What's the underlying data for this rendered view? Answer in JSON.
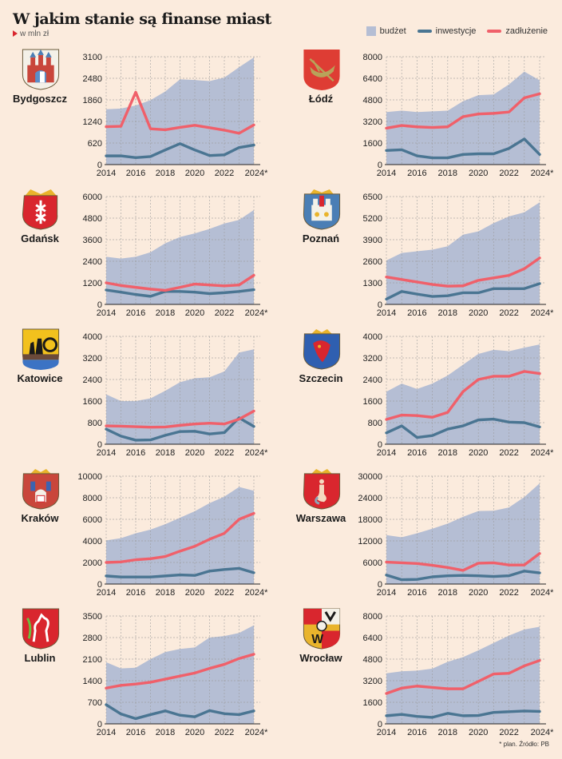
{
  "header": {
    "title": "W jakim stanie są finanse miast",
    "subtitle": "w mln zł"
  },
  "legend": {
    "budget": "budżet",
    "investments": "inwestycje",
    "debt": "zadłużenie"
  },
  "colors": {
    "background": "#fbebdd",
    "budget": "#b5bed4",
    "investments": "#4a7592",
    "debt": "#f0606a",
    "accent": "#d9262e"
  },
  "footnote": "* plan. Źródło: PB",
  "chart_data": [
    {
      "type": "area+line",
      "city": "Bydgoszcz",
      "x": [
        "2014",
        "2015",
        "2016",
        "2017",
        "2018",
        "2019",
        "2020",
        "2021",
        "2022",
        "2023",
        "2024*"
      ],
      "xticks": [
        "2014",
        "2016",
        "2018",
        "2020",
        "2022",
        "2024*"
      ],
      "yticks": [
        "0",
        "620",
        "1240",
        "1860",
        "2480",
        "3100"
      ],
      "ylim": [
        0,
        3100
      ],
      "series": [
        {
          "name": "budżet",
          "values": [
            1590,
            1610,
            1700,
            1850,
            2100,
            2450,
            2430,
            2400,
            2500,
            2800,
            3080
          ]
        },
        {
          "name": "inwestycje",
          "values": [
            250,
            250,
            200,
            230,
            420,
            600,
            420,
            260,
            280,
            490,
            560
          ]
        },
        {
          "name": "zadłużenie",
          "values": [
            1090,
            1100,
            2080,
            1030,
            1000,
            1070,
            1130,
            1060,
            990,
            900,
            1140
          ]
        }
      ]
    },
    {
      "type": "area+line",
      "city": "Łódź",
      "x": [
        "2014",
        "2015",
        "2016",
        "2017",
        "2018",
        "2019",
        "2020",
        "2021",
        "2022",
        "2023",
        "2024*"
      ],
      "xticks": [
        "2014",
        "2016",
        "2018",
        "2020",
        "2022",
        "2024*"
      ],
      "yticks": [
        "0",
        "1600",
        "3200",
        "4800",
        "6400",
        "8000"
      ],
      "ylim": [
        0,
        8000
      ],
      "series": [
        {
          "name": "budżet",
          "values": [
            3900,
            4000,
            3900,
            3950,
            4000,
            4700,
            5150,
            5200,
            5950,
            6900,
            6250
          ]
        },
        {
          "name": "inwestycje",
          "values": [
            1050,
            1100,
            650,
            500,
            500,
            750,
            800,
            800,
            1200,
            1900,
            750
          ]
        },
        {
          "name": "zadłużenie",
          "values": [
            2700,
            2900,
            2800,
            2750,
            2800,
            3550,
            3750,
            3800,
            3900,
            4950,
            5250
          ]
        }
      ]
    },
    {
      "type": "area+line",
      "city": "Gdańsk",
      "x": [
        "2014",
        "2015",
        "2016",
        "2017",
        "2018",
        "2019",
        "2020",
        "2021",
        "2022",
        "2023",
        "2024*"
      ],
      "xticks": [
        "2014",
        "2016",
        "2018",
        "2020",
        "2022",
        "2024*"
      ],
      "yticks": [
        "0",
        "1200",
        "2400",
        "3600",
        "4800",
        "6000"
      ],
      "ylim": [
        0,
        6000
      ],
      "series": [
        {
          "name": "budżet",
          "values": [
            2650,
            2550,
            2650,
            2900,
            3400,
            3750,
            3950,
            4200,
            4500,
            4700,
            5250
          ]
        },
        {
          "name": "inwestycje",
          "values": [
            800,
            680,
            550,
            450,
            720,
            720,
            680,
            600,
            650,
            720,
            820
          ]
        },
        {
          "name": "zadłużenie",
          "values": [
            1200,
            1050,
            950,
            850,
            780,
            950,
            1130,
            1080,
            1030,
            1080,
            1620
          ]
        }
      ]
    },
    {
      "type": "area+line",
      "city": "Poznań",
      "x": [
        "2014",
        "2015",
        "2016",
        "2017",
        "2018",
        "2019",
        "2020",
        "2021",
        "2022",
        "2023",
        "2024*"
      ],
      "xticks": [
        "2014",
        "2016",
        "2018",
        "2020",
        "2022",
        "2024*"
      ],
      "yticks": [
        "0",
        "1300",
        "2600",
        "3900",
        "5200",
        "6500"
      ],
      "ylim": [
        0,
        6500
      ],
      "series": [
        {
          "name": "budżet",
          "values": [
            2650,
            3100,
            3200,
            3300,
            3500,
            4200,
            4400,
            4900,
            5300,
            5550,
            6150
          ]
        },
        {
          "name": "inwestycje",
          "values": [
            320,
            780,
            620,
            480,
            520,
            700,
            700,
            950,
            950,
            950,
            1250
          ]
        },
        {
          "name": "zadłużenie",
          "values": [
            1650,
            1500,
            1350,
            1200,
            1100,
            1120,
            1450,
            1600,
            1750,
            2150,
            2800
          ]
        }
      ]
    },
    {
      "type": "area+line",
      "city": "Katowice",
      "x": [
        "2014",
        "2015",
        "2016",
        "2017",
        "2018",
        "2019",
        "2020",
        "2021",
        "2022",
        "2023",
        "2024*"
      ],
      "xticks": [
        "2014",
        "2016",
        "2018",
        "2020",
        "2022",
        "2024*"
      ],
      "yticks": [
        "0",
        "800",
        "1600",
        "2400",
        "3200",
        "4000"
      ],
      "ylim": [
        0,
        4000
      ],
      "series": [
        {
          "name": "budżet",
          "values": [
            1850,
            1600,
            1600,
            1700,
            1980,
            2300,
            2450,
            2480,
            2700,
            3400,
            3520
          ]
        },
        {
          "name": "inwestycje",
          "values": [
            560,
            300,
            150,
            160,
            330,
            470,
            480,
            380,
            430,
            980,
            660
          ]
        },
        {
          "name": "zadłużenie",
          "values": [
            680,
            670,
            650,
            630,
            640,
            700,
            750,
            780,
            750,
            930,
            1230
          ]
        }
      ]
    },
    {
      "type": "area+line",
      "city": "Szczecin",
      "x": [
        "2014",
        "2015",
        "2016",
        "2017",
        "2018",
        "2019",
        "2020",
        "2021",
        "2022",
        "2023",
        "2024*"
      ],
      "xticks": [
        "2014",
        "2016",
        "2018",
        "2020",
        "2022",
        "2024*"
      ],
      "yticks": [
        "0",
        "800",
        "1600",
        "2400",
        "3200",
        "4000"
      ],
      "ylim": [
        0,
        4000
      ],
      "series": [
        {
          "name": "budżet",
          "values": [
            1950,
            2250,
            2050,
            2250,
            2550,
            2950,
            3350,
            3500,
            3450,
            3580,
            3700
          ]
        },
        {
          "name": "inwestycje",
          "values": [
            420,
            680,
            250,
            320,
            560,
            680,
            900,
            930,
            820,
            800,
            640
          ]
        },
        {
          "name": "zadłużenie",
          "values": [
            920,
            1080,
            1060,
            1000,
            1180,
            1950,
            2400,
            2520,
            2520,
            2700,
            2620
          ]
        }
      ]
    },
    {
      "type": "area+line",
      "city": "Kraków",
      "x": [
        "2014",
        "2015",
        "2016",
        "2017",
        "2018",
        "2019",
        "2020",
        "2021",
        "2022",
        "2023",
        "2024*"
      ],
      "xticks": [
        "2014",
        "2016",
        "2018",
        "2020",
        "2022",
        "2024*"
      ],
      "yticks": [
        "0",
        "2000",
        "4000",
        "6000",
        "8000",
        "10000"
      ],
      "ylim": [
        0,
        10000
      ],
      "series": [
        {
          "name": "budżet",
          "values": [
            4050,
            4250,
            4700,
            5050,
            5550,
            6150,
            6750,
            7500,
            8100,
            9000,
            8650
          ]
        },
        {
          "name": "inwestycje",
          "values": [
            750,
            650,
            650,
            650,
            750,
            850,
            800,
            1200,
            1350,
            1450,
            1050
          ]
        },
        {
          "name": "zadłużenie",
          "values": [
            2000,
            2050,
            2250,
            2350,
            2550,
            3050,
            3500,
            4150,
            4700,
            6000,
            6550
          ]
        }
      ]
    },
    {
      "type": "area+line",
      "city": "Warszawa",
      "x": [
        "2014",
        "2015",
        "2016",
        "2017",
        "2018",
        "2019",
        "2020",
        "2021",
        "2022",
        "2023",
        "2024*"
      ],
      "xticks": [
        "2014",
        "2016",
        "2018",
        "2020",
        "2022",
        "2024*"
      ],
      "yticks": [
        "0",
        "6000",
        "12000",
        "18000",
        "24000",
        "30000"
      ],
      "ylim": [
        0,
        30000
      ],
      "series": [
        {
          "name": "budżet",
          "values": [
            13600,
            13000,
            14100,
            15400,
            16800,
            18700,
            20300,
            20400,
            21300,
            24200,
            28000
          ]
        },
        {
          "name": "inwestycje",
          "values": [
            2500,
            1200,
            1300,
            2000,
            2300,
            2400,
            2300,
            2100,
            2300,
            3600,
            3100
          ]
        },
        {
          "name": "zadłużenie",
          "values": [
            6100,
            5900,
            5700,
            5200,
            4600,
            3800,
            5800,
            5900,
            5300,
            5300,
            8500
          ]
        }
      ]
    },
    {
      "type": "area+line",
      "city": "Lublin",
      "x": [
        "2014",
        "2015",
        "2016",
        "2017",
        "2018",
        "2019",
        "2020",
        "2021",
        "2022",
        "2023",
        "2024*"
      ],
      "xticks": [
        "2014",
        "2016",
        "2018",
        "2020",
        "2022",
        "2024*"
      ],
      "yticks": [
        "0",
        "700",
        "1400",
        "2100",
        "2800",
        "3500"
      ],
      "ylim": [
        0,
        3500
      ],
      "series": [
        {
          "name": "budżet",
          "values": [
            2000,
            1800,
            1820,
            2100,
            2330,
            2430,
            2480,
            2800,
            2850,
            2950,
            3200
          ]
        },
        {
          "name": "inwestycje",
          "values": [
            620,
            320,
            170,
            300,
            420,
            280,
            230,
            430,
            330,
            300,
            420
          ]
        },
        {
          "name": "zadłużenie",
          "values": [
            1160,
            1250,
            1290,
            1350,
            1450,
            1550,
            1650,
            1800,
            1930,
            2120,
            2260
          ]
        }
      ]
    },
    {
      "type": "area+line",
      "city": "Wrocław",
      "x": [
        "2014",
        "2015",
        "2016",
        "2017",
        "2018",
        "2019",
        "2020",
        "2021",
        "2022",
        "2023",
        "2024*"
      ],
      "xticks": [
        "2014",
        "2016",
        "2018",
        "2020",
        "2022",
        "2024*"
      ],
      "yticks": [
        "0",
        "1600",
        "3200",
        "4800",
        "6400",
        "8000"
      ],
      "ylim": [
        0,
        8000
      ],
      "series": [
        {
          "name": "budżet",
          "values": [
            3750,
            3900,
            3950,
            4100,
            4600,
            4950,
            5450,
            6000,
            6550,
            7000,
            7200
          ]
        },
        {
          "name": "inwestycje",
          "values": [
            600,
            700,
            550,
            480,
            780,
            600,
            620,
            850,
            900,
            950,
            920
          ]
        },
        {
          "name": "zadłużenie",
          "values": [
            2250,
            2650,
            2800,
            2700,
            2600,
            2600,
            3150,
            3700,
            3750,
            4300,
            4700
          ]
        }
      ]
    }
  ]
}
